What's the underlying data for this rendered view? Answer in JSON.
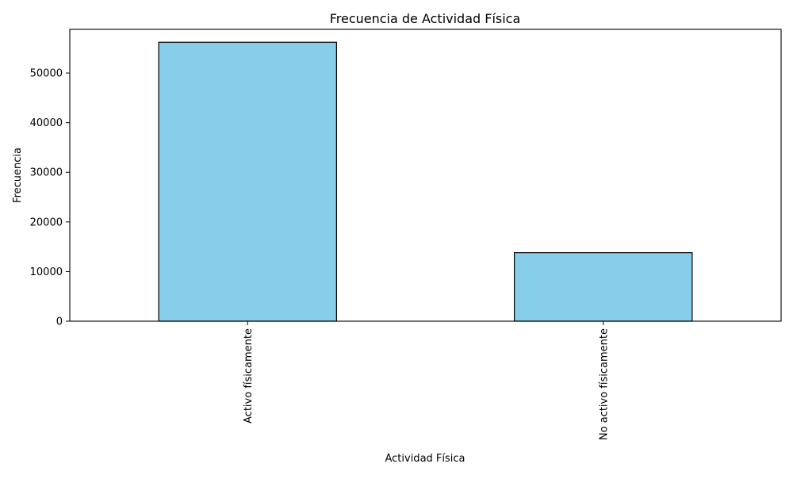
{
  "chart_data": {
    "type": "bar",
    "title": "Frecuencia de Actividad Física",
    "xlabel": "Actividad Física",
    "ylabel": "Frecuencia",
    "categories": [
      "Activo físicamente",
      "No activo físicamente"
    ],
    "values": [
      56200,
      13800
    ],
    "ylim": [
      0,
      58800
    ],
    "yticks": [
      0,
      10000,
      20000,
      30000,
      40000,
      50000
    ],
    "ytick_labels": [
      "0",
      "10000",
      "20000",
      "30000",
      "40000",
      "50000"
    ],
    "grid": false,
    "legend": "none",
    "colors": {
      "bar_fill": "#87ceeb",
      "bar_edge": "#000000",
      "axis": "#000000",
      "text": "#000000",
      "background": "#ffffff"
    }
  }
}
